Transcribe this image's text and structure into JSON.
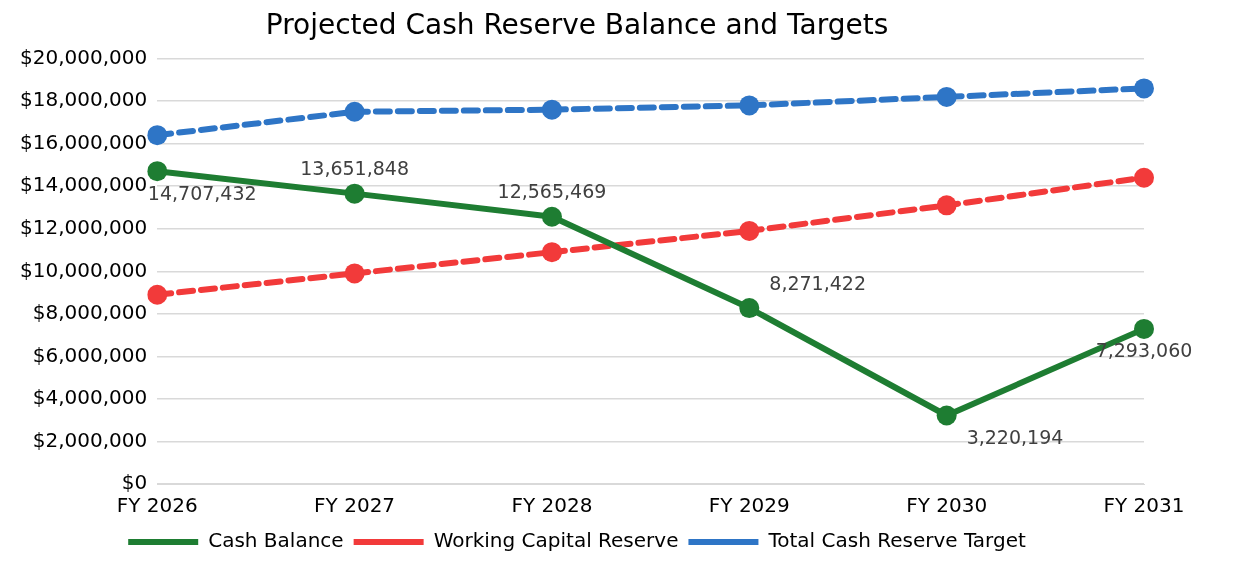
{
  "chart_data": {
    "type": "line",
    "title": "Projected Cash Reserve Balance and Targets",
    "categories": [
      "FY 2026",
      "FY 2027",
      "FY 2028",
      "FY 2029",
      "FY 2030",
      "FY 2031"
    ],
    "series": [
      {
        "name": "Cash Balance",
        "color": "#1e7d32",
        "line_style": "solid",
        "values": [
          14707432,
          13651848,
          12565469,
          8271422,
          3220194,
          7293060
        ],
        "value_labels": [
          "14,707,432",
          "13,651,848",
          "12,565,469",
          "8,271,422",
          "3,220,194",
          "7,293,060"
        ]
      },
      {
        "name": "Working Capital Reserve",
        "color": "#f23a3a",
        "line_style": "dashed",
        "values": [
          8900000,
          9900000,
          10900000,
          11900000,
          13100000,
          14400000
        ]
      },
      {
        "name": "Total Cash Reserve Target",
        "color": "#2e75c6",
        "line_style": "dashed",
        "values": [
          16400000,
          17500000,
          17600000,
          17800000,
          18200000,
          18600000
        ]
      }
    ],
    "ylim": [
      0,
      20000000
    ],
    "yticks": [
      {
        "value": 0,
        "label": "$0"
      },
      {
        "value": 2000000,
        "label": "$2,000,000"
      },
      {
        "value": 4000000,
        "label": "$4,000,000"
      },
      {
        "value": 6000000,
        "label": "$6,000,000"
      },
      {
        "value": 8000000,
        "label": "$8,000,000"
      },
      {
        "value": 10000000,
        "label": "$10,000,000"
      },
      {
        "value": 12000000,
        "label": "$12,000,000"
      },
      {
        "value": 14000000,
        "label": "$14,000,000"
      },
      {
        "value": 16000000,
        "label": "$16,000,000"
      },
      {
        "value": 18000000,
        "label": "$18,000,000"
      },
      {
        "value": 20000000,
        "label": "$20,000,000"
      }
    ],
    "grid": "y",
    "legend": "bottom",
    "marker": "circle"
  }
}
